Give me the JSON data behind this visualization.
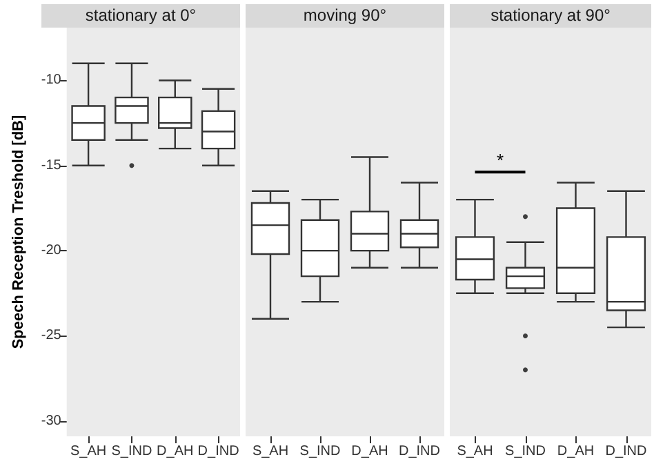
{
  "chart_data": [
    {
      "type": "box",
      "title": "stationary at 0°",
      "ylabel": "Speech Reception Treshold [dB]",
      "categories": [
        "S_AH",
        "S_IND",
        "D_AH",
        "D_IND"
      ],
      "ylim": [
        -30.9,
        -6.9
      ],
      "yticks": [
        -10,
        -15,
        -20,
        -25,
        -30
      ],
      "boxes": [
        {
          "low": -15,
          "q1": -13.5,
          "median": -12.5,
          "q3": -11.5,
          "high": -9
        },
        {
          "low": -13.5,
          "q1": -12.5,
          "median": -11.5,
          "q3": -11,
          "high": -9,
          "outliers": [
            -15
          ]
        },
        {
          "low": -14,
          "q1": -12.8,
          "median": -12.5,
          "q3": -11,
          "high": -10
        },
        {
          "low": -15,
          "q1": -14,
          "median": -13,
          "q3": -11.8,
          "high": -10.5
        }
      ]
    },
    {
      "type": "box",
      "title": "moving 90°",
      "categories": [
        "S_AH",
        "S_IND",
        "D_AH",
        "D_IND"
      ],
      "ylim": [
        -30.9,
        -6.9
      ],
      "yticks": [
        -10,
        -15,
        -20,
        -25,
        -30
      ],
      "tick_labels": "x",
      "boxes": [
        {
          "low": -24,
          "q1": -20.2,
          "median": -18.5,
          "q3": -17.2,
          "high": -16.5
        },
        {
          "low": -23,
          "q1": -21.5,
          "median": -20,
          "q3": -18.2,
          "high": -17
        },
        {
          "low": -21,
          "q1": -20,
          "median": -19,
          "q3": -17.7,
          "high": -14.5
        },
        {
          "low": -21,
          "q1": -19.8,
          "median": -19,
          "q3": -18.2,
          "high": -16
        }
      ]
    },
    {
      "type": "box",
      "title": "stationary at 90°",
      "categories": [
        "S_AH",
        "S_IND",
        "D_AH",
        "D_IND"
      ],
      "ylim": [
        -30.9,
        -6.9
      ],
      "yticks": [
        -10,
        -15,
        -20,
        -25,
        -30
      ],
      "tick_labels": "x",
      "annotations": [
        "*"
      ],
      "boxes": [
        {
          "low": -22.5,
          "q1": -21.7,
          "median": -20.5,
          "q3": -19.2,
          "high": -17
        },
        {
          "low": -22.5,
          "q1": -22.2,
          "median": -21.5,
          "q3": -21,
          "high": -19.5,
          "outliers": [
            -18,
            -25,
            -27
          ]
        },
        {
          "low": -23,
          "q1": -22.5,
          "median": -21,
          "q3": -17.5,
          "high": -16
        },
        {
          "low": -24.5,
          "q1": -23.5,
          "median": -23,
          "q3": -19.2,
          "high": -16.5
        }
      ]
    }
  ]
}
